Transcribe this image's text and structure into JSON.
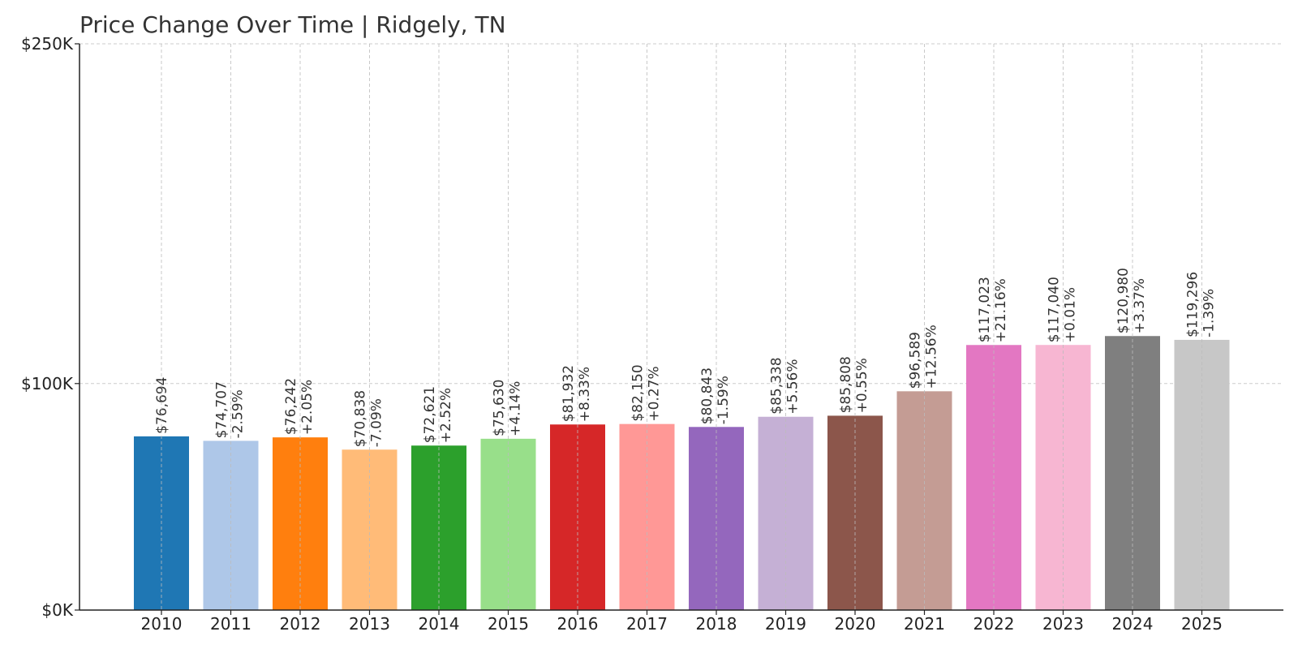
{
  "chart_data": {
    "type": "bar",
    "title": "Price Change Over Time | Ridgely, TN",
    "xlabel": "",
    "ylabel": "",
    "ylim": [
      0,
      250000
    ],
    "yticks": [
      {
        "value": 0,
        "label": "$0K"
      },
      {
        "value": 100000,
        "label": "$100K"
      },
      {
        "value": 250000,
        "label": "$250K"
      }
    ],
    "grid": true,
    "categories": [
      "2010",
      "2011",
      "2012",
      "2013",
      "2014",
      "2015",
      "2016",
      "2017",
      "2018",
      "2019",
      "2020",
      "2021",
      "2022",
      "2023",
      "2024",
      "2025"
    ],
    "values": [
      76694,
      74707,
      76242,
      70838,
      72621,
      75630,
      81932,
      82150,
      80843,
      85338,
      85808,
      96589,
      117023,
      117040,
      120980,
      119296
    ],
    "value_labels": [
      "$76,694",
      "$74,707",
      "$76,242",
      "$70,838",
      "$72,621",
      "$75,630",
      "$81,932",
      "$82,150",
      "$80,843",
      "$85,338",
      "$85,808",
      "$96,589",
      "$117,023",
      "$117,040",
      "$120,980",
      "$119,296"
    ],
    "change_labels": [
      "",
      "-2.59%",
      "+2.05%",
      "-7.09%",
      "+2.52%",
      "+4.14%",
      "+8.33%",
      "+0.27%",
      "-1.59%",
      "+5.56%",
      "+0.55%",
      "+12.56%",
      "+21.16%",
      "+0.01%",
      "+3.37%",
      "-1.39%"
    ],
    "colors": [
      "#1f77b4",
      "#aec7e8",
      "#ff7f0e",
      "#ffbb78",
      "#2ca02c",
      "#98df8a",
      "#d62728",
      "#ff9896",
      "#9467bd",
      "#c5b0d5",
      "#8c564b",
      "#c49c94",
      "#e377c2",
      "#f7b6d2",
      "#7f7f7f",
      "#c7c7c7"
    ]
  }
}
